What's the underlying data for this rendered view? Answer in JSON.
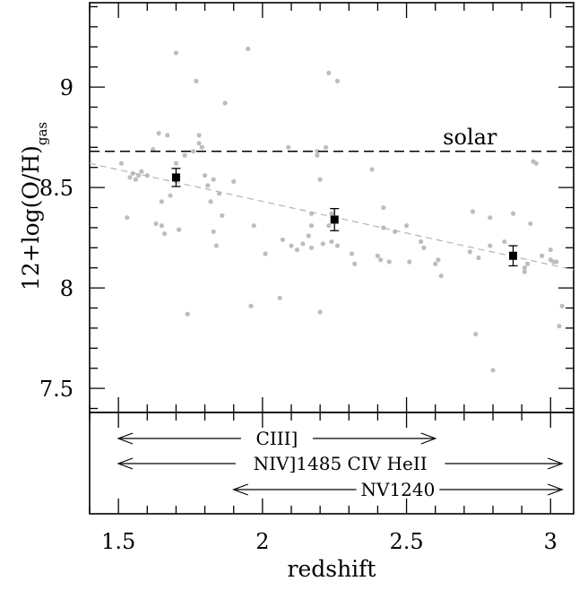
{
  "chart_data": {
    "type": "scatter",
    "title": "",
    "xlabel": "redshift",
    "ylabel": {
      "main": "12+log(O/H)",
      "subscript": "gas"
    },
    "xlim": [
      1.4,
      3.08
    ],
    "ylim": [
      7.38,
      9.42
    ],
    "x_ticks": [
      {
        "value": 1.5,
        "label": "1.5"
      },
      {
        "value": 2,
        "label": "2"
      },
      {
        "value": 2.5,
        "label": "2.5"
      },
      {
        "value": 3,
        "label": "3"
      }
    ],
    "y_ticks": [
      {
        "value": 7.5,
        "label": "7.5"
      },
      {
        "value": 8,
        "label": "8"
      },
      {
        "value": 8.5,
        "label": "8.5"
      },
      {
        "value": 9,
        "label": "9"
      }
    ],
    "grid": false,
    "colors": {
      "points": "#bdbdbd",
      "trend": "#b3b3b3",
      "binned": "#000000",
      "solar": "#000000"
    },
    "solar_line": {
      "value": 8.68,
      "label": "solar"
    },
    "trend_line": {
      "x": [
        1.4,
        3.08
      ],
      "y": [
        8.62,
        8.09
      ]
    },
    "individual_points": [
      [
        1.51,
        8.62
      ],
      [
        1.53,
        8.35
      ],
      [
        1.54,
        8.55
      ],
      [
        1.55,
        8.57
      ],
      [
        1.56,
        8.54
      ],
      [
        1.57,
        8.56
      ],
      [
        1.6,
        8.56
      ],
      [
        1.62,
        8.69
      ],
      [
        1.63,
        8.32
      ],
      [
        1.64,
        8.77
      ],
      [
        1.65,
        8.31
      ],
      [
        1.65,
        8.43
      ],
      [
        1.66,
        8.27
      ],
      [
        1.67,
        8.76
      ],
      [
        1.68,
        8.46
      ],
      [
        1.7,
        9.17
      ],
      [
        1.7,
        8.62
      ],
      [
        1.71,
        8.29
      ],
      [
        1.73,
        8.66
      ],
      [
        1.74,
        7.87
      ],
      [
        1.76,
        8.68
      ],
      [
        1.77,
        9.03
      ],
      [
        1.78,
        8.72
      ],
      [
        1.78,
        8.76
      ],
      [
        1.79,
        8.7
      ],
      [
        1.8,
        8.56
      ],
      [
        1.81,
        8.51
      ],
      [
        1.82,
        8.43
      ],
      [
        1.83,
        8.28
      ],
      [
        1.83,
        8.54
      ],
      [
        1.84,
        8.21
      ],
      [
        1.85,
        8.47
      ],
      [
        1.86,
        8.36
      ],
      [
        1.87,
        8.92
      ],
      [
        1.9,
        8.53
      ],
      [
        1.95,
        9.19
      ],
      [
        1.96,
        7.91
      ],
      [
        1.97,
        8.31
      ],
      [
        2.01,
        8.17
      ],
      [
        2.06,
        7.95
      ],
      [
        2.09,
        8.7
      ],
      [
        2.1,
        8.21
      ],
      [
        2.12,
        8.19
      ],
      [
        2.14,
        8.22
      ],
      [
        2.16,
        8.26
      ],
      [
        2.17,
        8.31
      ],
      [
        2.17,
        8.37
      ],
      [
        2.17,
        8.2
      ],
      [
        2.19,
        8.66
      ],
      [
        2.19,
        8.68
      ],
      [
        2.2,
        7.88
      ],
      [
        2.2,
        8.54
      ],
      [
        2.21,
        8.22
      ],
      [
        2.22,
        8.7
      ],
      [
        2.23,
        9.07
      ],
      [
        2.23,
        8.31
      ],
      [
        2.24,
        8.23
      ],
      [
        2.24,
        8.37
      ],
      [
        2.26,
        9.03
      ],
      [
        2.26,
        8.21
      ],
      [
        2.31,
        8.17
      ],
      [
        2.38,
        8.59
      ],
      [
        2.4,
        8.16
      ],
      [
        2.41,
        8.14
      ],
      [
        2.42,
        8.4
      ],
      [
        2.42,
        8.3
      ],
      [
        2.44,
        8.13
      ],
      [
        2.46,
        8.28
      ],
      [
        2.5,
        8.31
      ],
      [
        2.51,
        8.13
      ],
      [
        2.56,
        8.2
      ],
      [
        2.6,
        8.12
      ],
      [
        2.61,
        8.14
      ],
      [
        2.62,
        8.06
      ],
      [
        2.72,
        8.18
      ],
      [
        2.73,
        8.38
      ],
      [
        2.74,
        7.77
      ],
      [
        2.75,
        8.15
      ],
      [
        2.79,
        8.35
      ],
      [
        2.79,
        8.21
      ],
      [
        2.8,
        7.59
      ],
      [
        2.84,
        8.23
      ],
      [
        2.87,
        8.37
      ],
      [
        2.91,
        8.1
      ],
      [
        2.91,
        8.08
      ],
      [
        2.92,
        8.12
      ],
      [
        2.93,
        8.32
      ],
      [
        2.94,
        8.63
      ],
      [
        2.95,
        8.62
      ],
      [
        2.97,
        8.16
      ],
      [
        3.0,
        8.14
      ],
      [
        3.0,
        8.19
      ],
      [
        3.01,
        8.13
      ],
      [
        3.02,
        8.13
      ],
      [
        3.03,
        7.81
      ],
      [
        3.04,
        7.91
      ],
      [
        1.58,
        8.58
      ],
      [
        2.07,
        8.24
      ],
      [
        2.32,
        8.12
      ],
      [
        2.55,
        8.23
      ]
    ],
    "binned_means": [
      {
        "x": 1.7,
        "y": 8.55,
        "yerr": 0.045
      },
      {
        "x": 2.25,
        "y": 8.34,
        "yerr": 0.055
      },
      {
        "x": 2.87,
        "y": 8.16,
        "yerr": 0.05
      }
    ],
    "line_coverage": [
      {
        "label": "CIII]",
        "xmin": 1.5,
        "xmax": 2.6
      },
      {
        "label": "NIV]1485 CIV HeII",
        "xmin": 1.5,
        "xmax": 3.04
      },
      {
        "label": "NV1240",
        "xmin": 1.9,
        "xmax": 3.04
      }
    ]
  }
}
